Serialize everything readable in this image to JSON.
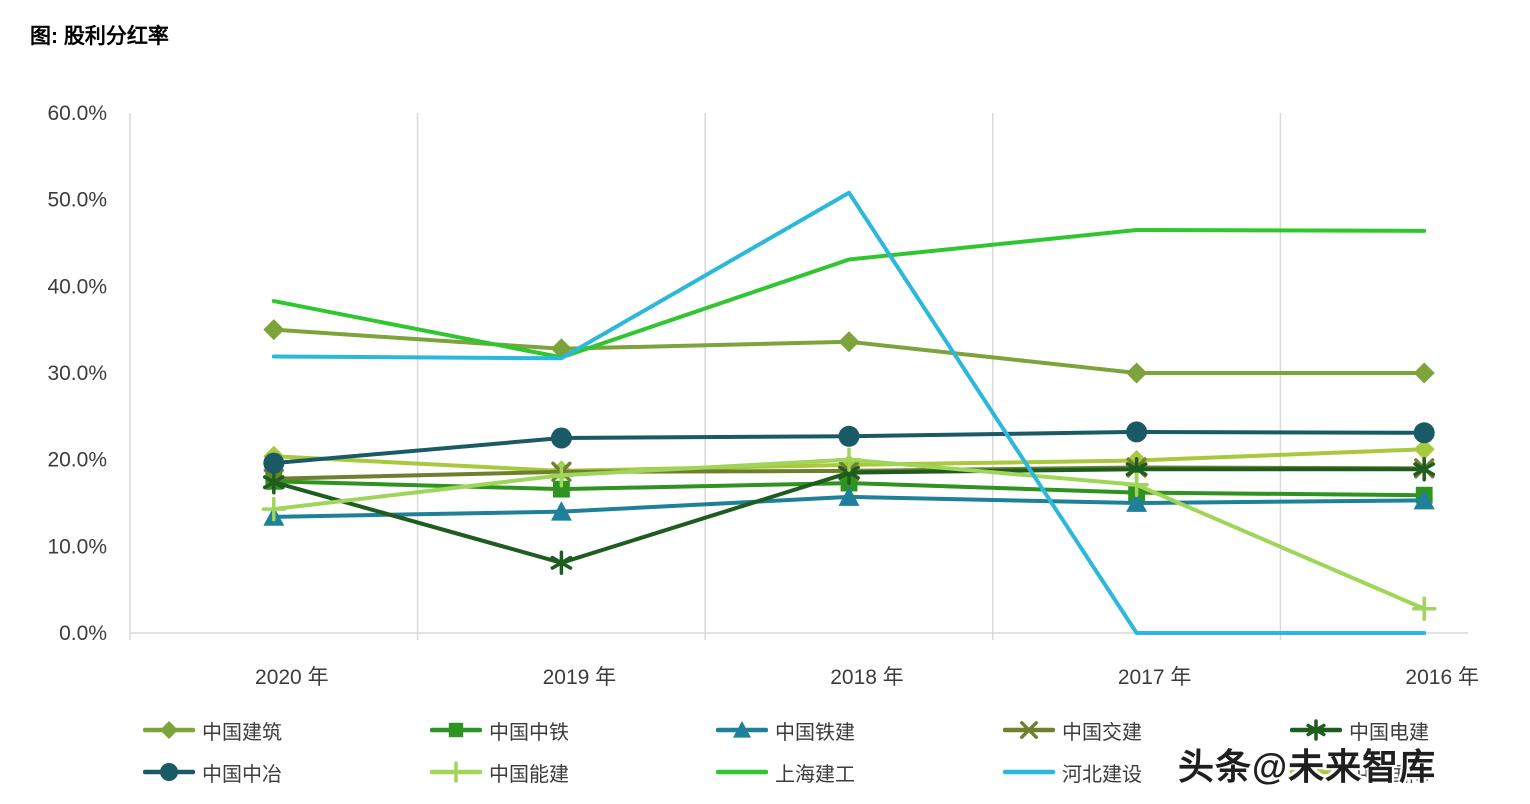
{
  "title": "图: 股利分红率",
  "watermark": "头条@未来智库",
  "chart_data": {
    "type": "line",
    "title": "图: 股利分红率",
    "categories": [
      "2020 年",
      "2019 年",
      "2018 年",
      "2017 年",
      "2016 年"
    ],
    "y_axis": {
      "min": 0,
      "max": 60,
      "step": 10,
      "unit": "%",
      "tick_labels": [
        "0.0%",
        "10.0%",
        "20.0%",
        "30.0%",
        "40.0%",
        "50.0%",
        "60.0%"
      ]
    },
    "grid": "vertical-only",
    "legend_position": "bottom",
    "axis_color": "#D9D9D9",
    "label_color": "#3C3C3C",
    "series": [
      {
        "name": "中国建筑",
        "color": "#7DA33B",
        "marker": "diamond",
        "values": [
          35.0,
          32.8,
          33.6,
          30.0,
          30.0
        ]
      },
      {
        "name": "中国中铁",
        "color": "#2E9320",
        "marker": "square",
        "values": [
          17.5,
          16.6,
          17.3,
          16.2,
          15.9
        ]
      },
      {
        "name": "中国铁建",
        "color": "#1F8099",
        "marker": "triangle",
        "values": [
          13.4,
          14.0,
          15.7,
          15.0,
          15.3
        ]
      },
      {
        "name": "中国交建",
        "color": "#6E7F2E",
        "marker": "x",
        "values": [
          17.8,
          18.6,
          18.7,
          19.1,
          19.0
        ]
      },
      {
        "name": "中国电建",
        "color": "#1F5C20",
        "marker": "asterisk",
        "values": [
          17.4,
          8.1,
          18.5,
          18.9,
          18.9
        ]
      },
      {
        "name": "中国中冶",
        "color": "#1A5A66",
        "marker": "circle",
        "values": [
          19.6,
          22.5,
          22.7,
          23.2,
          23.1
        ]
      },
      {
        "name": "中国能建",
        "color": "#9FD559",
        "marker": "plus",
        "values": [
          14.3,
          18.2,
          20.0,
          17.1,
          2.8
        ]
      },
      {
        "name": "上海建工",
        "color": "#2FC62F",
        "marker": "none",
        "values": [
          38.3,
          31.8,
          43.1,
          46.5,
          46.4
        ]
      },
      {
        "name": "河北建设",
        "color": "#2BB8DC",
        "marker": "none",
        "values": [
          31.9,
          31.7,
          50.8,
          0.0,
          0.0
        ]
      },
      {
        "name": "中材国际",
        "color": "#A8C83D",
        "marker": "diamond",
        "values": [
          20.4,
          18.7,
          19.4,
          19.9,
          21.2
        ]
      }
    ]
  }
}
